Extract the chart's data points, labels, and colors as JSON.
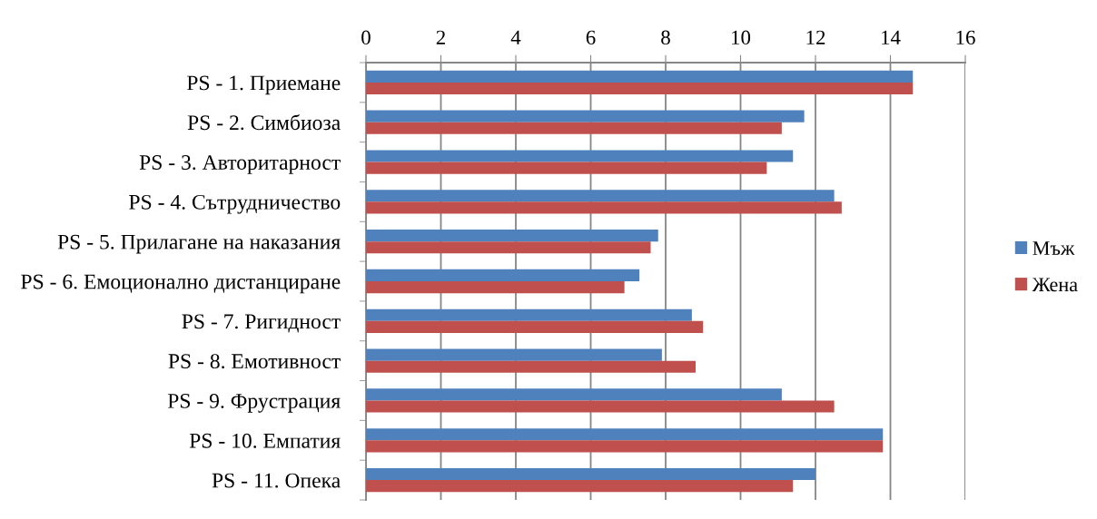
{
  "chart_data": {
    "type": "bar",
    "orientation": "horizontal",
    "categories": [
      "PS - 1. Приемане",
      "PS - 2. Симбиоза",
      "PS - 3. Авторитарност",
      "PS - 4. Сътрудничество",
      "PS - 5. Прилагане на наказания",
      "PS - 6. Емоционално дистанциране",
      "PS - 7. Ригидност",
      "PS - 8. Емотивност",
      "PS - 9. Фрустрация",
      "PS - 10. Емпатия",
      "PS - 11. Опека"
    ],
    "series": [
      {
        "name": "Мъж",
        "color": "#4f81bd",
        "values": [
          14.6,
          11.7,
          11.4,
          12.5,
          7.8,
          7.3,
          8.7,
          7.9,
          11.1,
          13.8,
          12.0
        ]
      },
      {
        "name": "Жена",
        "color": "#c0504d",
        "values": [
          14.6,
          11.1,
          10.7,
          12.7,
          7.6,
          6.9,
          9.0,
          8.8,
          12.5,
          13.8,
          11.4
        ]
      }
    ],
    "xlim": [
      0,
      16
    ],
    "xticks": [
      0,
      2,
      4,
      6,
      8,
      10,
      12,
      14,
      16
    ],
    "grid": "x",
    "legend": "right"
  }
}
